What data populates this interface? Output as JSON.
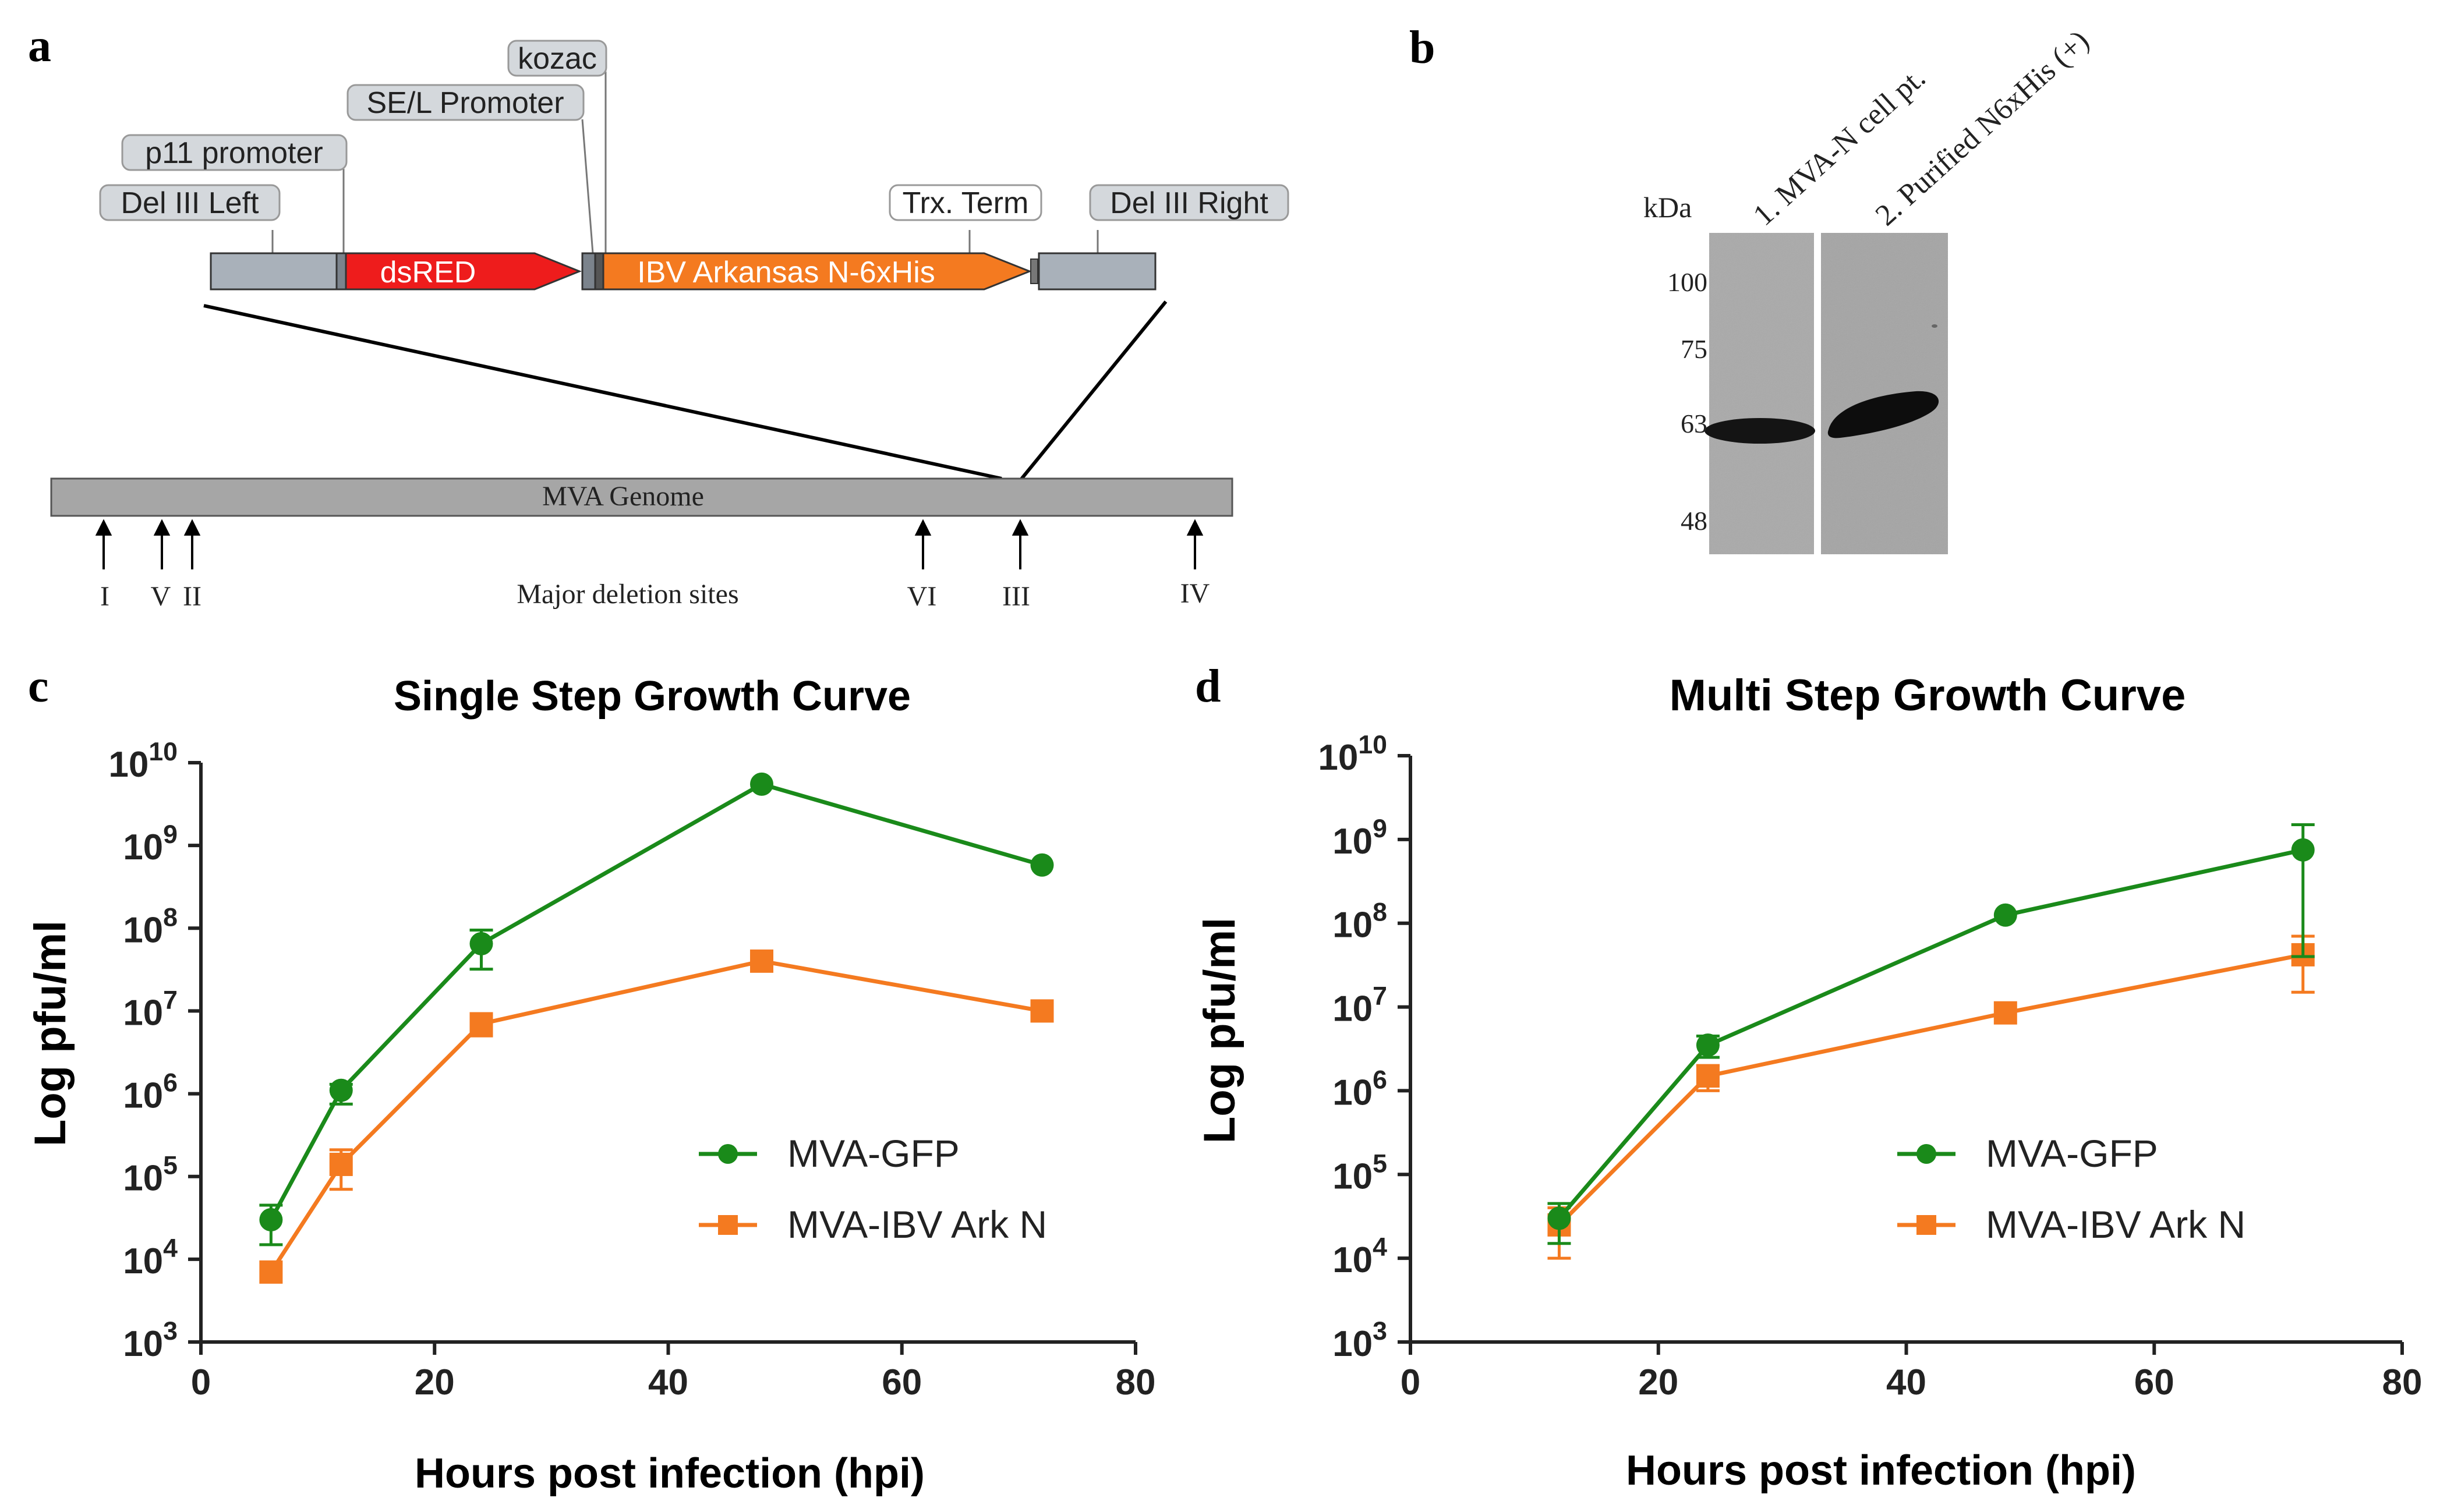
{
  "panels": {
    "a": {
      "letter": "a",
      "construct_labels": {
        "kozac": "kozac",
        "se_l": "SE/L Promoter",
        "p11": "p11 promoter",
        "del_left": "Del III Left",
        "trx": "Trx. Term",
        "del_right": "Del III Right"
      },
      "dsred": "dsRED",
      "ibv": "IBV Arkansas N-6xHis",
      "genome": "MVA Genome",
      "deletion_sites": [
        "I",
        "V",
        "II",
        "VI",
        "III",
        "IV"
      ],
      "deletion_caption": "Major deletion sites",
      "colors": {
        "dsred": "#ee1c1c",
        "ibv": "#f47a20",
        "flank": "#a9b1ba",
        "genome": "#a6a6a6"
      }
    },
    "b": {
      "letter": "b",
      "unit": "kDa",
      "lane1": "1. MVA-N cell pt.",
      "lane2": "2. Purified N6xHis (+)",
      "markers": [
        "100",
        "75",
        "63",
        "48"
      ]
    }
  },
  "chart_data": [
    {
      "panel": "c",
      "type": "line",
      "title": "Single Step Growth Curve",
      "xlabel": "Hours post infection (hpi)",
      "ylabel": "Log pfu/ml",
      "xlim": [
        0,
        80
      ],
      "xticks": [
        0,
        20,
        40,
        60,
        80
      ],
      "ylim_log10": [
        3,
        10
      ],
      "ytick_exponents": [
        3,
        4,
        5,
        6,
        7,
        8,
        9,
        10
      ],
      "series": [
        {
          "name": "MVA-GFP",
          "color": "#1a8a1a",
          "marker": "circle",
          "x": [
            6,
            12,
            24,
            48,
            72
          ],
          "y": [
            30000.0,
            1100000.0,
            65000000.0,
            5500000000.0,
            580000000.0
          ],
          "err_low": [
            15000.0,
            750000.0,
            32000000.0,
            5500000000.0,
            580000000.0
          ],
          "err_high": [
            45000.0,
            1300000.0,
            95000000.0,
            5500000000.0,
            580000000.0
          ]
        },
        {
          "name": "MVA-IBV Ark N",
          "color": "#f47a20",
          "marker": "square",
          "x": [
            6,
            12,
            24,
            48,
            72
          ],
          "y": [
            7000.0,
            140000.0,
            7000000.0,
            40000000.0,
            10000000.0
          ],
          "err_low": [
            7000.0,
            70000.0,
            5000000.0,
            40000000.0,
            10000000.0
          ],
          "err_high": [
            7000.0,
            210000.0,
            9000000.0,
            40000000.0,
            10000000.0
          ]
        }
      ]
    },
    {
      "panel": "d",
      "type": "line",
      "title": "Multi Step Growth Curve",
      "xlabel": "Hours post infection (hpi)",
      "ylabel": "Log pfu/ml",
      "xlim": [
        0,
        80
      ],
      "xticks": [
        0,
        20,
        40,
        60,
        80
      ],
      "ylim_log10": [
        3,
        10
      ],
      "ytick_exponents": [
        3,
        4,
        5,
        6,
        7,
        8,
        9,
        10
      ],
      "series": [
        {
          "name": "MVA-GFP",
          "color": "#1a8a1a",
          "marker": "circle",
          "x": [
            12,
            24,
            48,
            72
          ],
          "y": [
            30000.0,
            3500000.0,
            125000000.0,
            750000000.0
          ],
          "err_low": [
            15000.0,
            2500000.0,
            125000000.0,
            40000000.0
          ],
          "err_high": [
            45000.0,
            4500000.0,
            125000000.0,
            1500000000.0
          ]
        },
        {
          "name": "MVA-IBV Ark N",
          "color": "#f47a20",
          "marker": "square",
          "x": [
            12,
            24,
            48,
            72
          ],
          "y": [
            25000.0,
            1500000.0,
            8500000.0,
            42000000.0
          ],
          "err_low": [
            10000.0,
            1000000.0,
            8500000.0,
            15000000.0
          ],
          "err_high": [
            40000.0,
            2000000.0,
            8500000.0,
            70000000.0
          ]
        }
      ]
    }
  ]
}
